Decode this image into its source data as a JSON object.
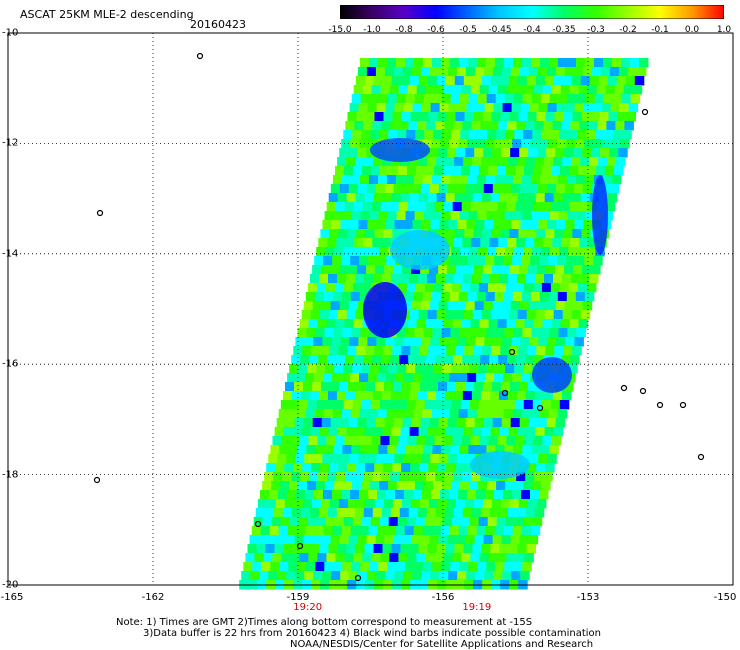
{
  "header": {
    "title": "ASCAT 25KM MLE-2 descending",
    "date": "20160423"
  },
  "colorbar": {
    "ticks": [
      "-15.0",
      "-1.0",
      "-0.8",
      "-0.6",
      "-0.5",
      "-0.45",
      "-0.4",
      "-0.35",
      "-0.3",
      "-0.2",
      "-0.1",
      "0.0",
      "1.0"
    ],
    "colors": [
      "#000000",
      "#3a0066",
      "#5a00c8",
      "#0000ff",
      "#0066ff",
      "#00c8ff",
      "#00ffff",
      "#00ff66",
      "#33ff00",
      "#99ff00",
      "#ffff00",
      "#ff9900",
      "#ff0000"
    ]
  },
  "map": {
    "lat_labels": [
      "-10",
      "-12",
      "-14",
      "-16",
      "-18",
      "-20"
    ],
    "lon_labels": [
      "-165",
      "-162",
      "-159",
      "-156",
      "-153",
      "-150"
    ],
    "lat_range": [
      -20,
      -10
    ],
    "lon_range": [
      -165,
      -150
    ],
    "time_labels": [
      {
        "text": "19:20",
        "lon": -158.8
      },
      {
        "text": "19:19",
        "lon": -155.3
      }
    ],
    "swath_colors": [
      "#33ff00",
      "#00ff66",
      "#66ff00",
      "#00ffb0",
      "#00ffff",
      "#99ff00"
    ]
  },
  "notes": {
    "line1": "Note: 1) Times are GMT 2)Times along bottom correspond to measurement at -15S",
    "line2": "3)Data buffer is 22 hrs from 20160423 4) Black wind barbs indicate possible contamination",
    "line3": "NOAA/NESDIS/Center for Satellite Applications and Research"
  }
}
